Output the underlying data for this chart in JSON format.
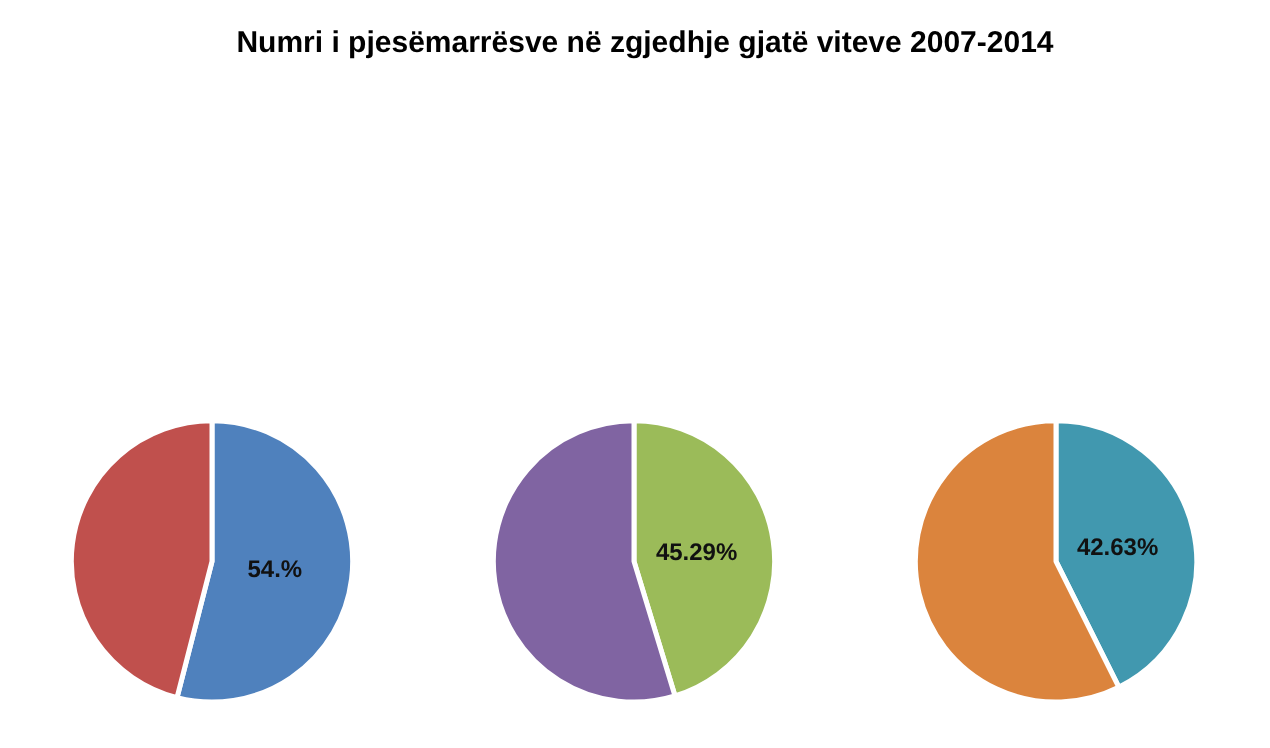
{
  "chart_data": [
    {
      "type": "pie",
      "title": "Numri i pjesëmarrësve në zgjedhje gjatë viteve 2007-2014",
      "categories": [
        null,
        null
      ],
      "values": [
        54,
        46
      ],
      "colors": [
        "#4f81bd",
        "#c0504d"
      ],
      "value_labels": [
        "54.%",
        null
      ]
    },
    {
      "type": "pie",
      "categories": [
        null,
        null
      ],
      "values": [
        45.29,
        54.71
      ],
      "colors": [
        "#9bbb59",
        "#8064a2"
      ],
      "value_labels": [
        "45.29%",
        null
      ]
    },
    {
      "type": "pie",
      "categories": [
        null,
        null
      ],
      "values": [
        42.63,
        57.37
      ],
      "colors": [
        "#4198af",
        "#db843d"
      ],
      "value_labels": [
        "42.63%",
        null
      ]
    }
  ]
}
